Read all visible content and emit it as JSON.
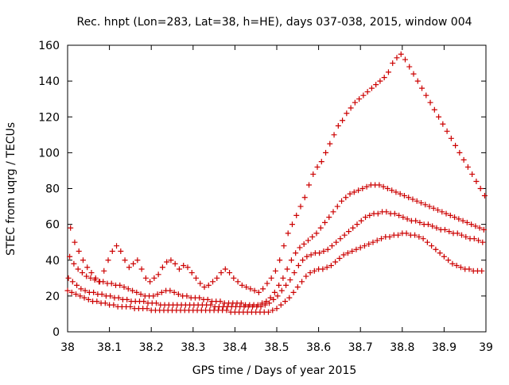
{
  "chart_data": {
    "type": "scatter",
    "title": "Rec. hnpt (Lon=283, Lat=38, h=HE), days 037-038, 2015, window 004",
    "xlabel": "GPS time / Days of year 2015",
    "ylabel": "STEC from uqrg / TECUs",
    "xlim": [
      38,
      39
    ],
    "ylim": [
      0,
      160
    ],
    "xticks": [
      "38",
      "38.1",
      "38.2",
      "38.3",
      "38.4",
      "38.5",
      "38.6",
      "38.7",
      "38.8",
      "38.9",
      "39"
    ],
    "yticks": [
      "0",
      "20",
      "40",
      "60",
      "80",
      "100",
      "120",
      "140",
      "160"
    ],
    "grid": false,
    "legend": "none",
    "marker": "+",
    "color": "#cc0000",
    "series": [
      {
        "x": [
          38.0,
          38.01,
          38.02,
          38.03,
          38.04,
          38.05,
          38.06,
          38.07,
          38.08,
          38.09,
          38.1,
          38.11,
          38.12,
          38.13,
          38.14,
          38.15,
          38.16,
          38.17,
          38.18,
          38.19,
          38.2,
          38.21,
          38.22,
          38.23,
          38.24,
          38.25,
          38.26,
          38.27,
          38.28,
          38.29,
          38.3,
          38.31,
          38.32,
          38.33,
          38.34,
          38.35,
          38.36,
          38.37,
          38.38,
          38.39,
          38.4,
          38.41,
          38.42,
          38.43,
          38.44,
          38.45,
          38.46,
          38.47,
          38.48,
          38.49,
          38.5,
          38.51,
          38.52,
          38.53,
          38.54,
          38.55,
          38.56,
          38.57,
          38.58,
          38.59,
          38.6,
          38.61,
          38.62,
          38.63,
          38.64,
          38.65,
          38.66,
          38.67,
          38.68,
          38.69,
          38.7,
          38.71,
          38.72,
          38.73,
          38.74,
          38.75,
          38.76,
          38.77,
          38.78,
          38.79,
          38.8,
          38.81,
          38.82,
          38.83,
          38.84,
          38.85,
          38.86,
          38.87,
          38.88,
          38.89,
          38.9,
          38.91,
          38.92,
          38.93,
          38.94,
          38.95,
          38.96,
          38.97,
          38.98,
          38.99
        ],
        "y": [
          23,
          22,
          21,
          20,
          19,
          18,
          17,
          17,
          16,
          16,
          15,
          15,
          14,
          14,
          14,
          14,
          13,
          13,
          13,
          13,
          12,
          12,
          12,
          12,
          12,
          12,
          12,
          12,
          12,
          12,
          12,
          12,
          12,
          12,
          12,
          12,
          12,
          12,
          12,
          11,
          11,
          11,
          11,
          11,
          11,
          11,
          11,
          11,
          11,
          12,
          13,
          15,
          17,
          19,
          22,
          25,
          28,
          31,
          33,
          34,
          35,
          35,
          36,
          37,
          39,
          41,
          43,
          44,
          45,
          46,
          47,
          48,
          49,
          50,
          51,
          52,
          53,
          53,
          54,
          54,
          55,
          55,
          54,
          54,
          53,
          52,
          50,
          48,
          46,
          44,
          42,
          40,
          38,
          37,
          36,
          35,
          35,
          34,
          34,
          34
        ]
      },
      {
        "x": [
          38.002,
          38.012,
          38.022,
          38.032,
          38.042,
          38.052,
          38.062,
          38.072,
          38.082,
          38.092,
          38.102,
          38.112,
          38.122,
          38.132,
          38.142,
          38.152,
          38.162,
          38.172,
          38.182,
          38.192,
          38.202,
          38.212,
          38.222,
          38.232,
          38.242,
          38.252,
          38.262,
          38.272,
          38.282,
          38.292,
          38.302,
          38.312,
          38.322,
          38.332,
          38.342,
          38.352,
          38.362,
          38.372,
          38.382,
          38.392,
          38.402,
          38.412,
          38.422,
          38.432,
          38.442,
          38.452,
          38.462,
          38.472,
          38.482,
          38.492,
          38.502,
          38.512,
          38.522,
          38.532,
          38.542,
          38.552,
          38.562,
          38.572,
          38.582,
          38.592,
          38.602,
          38.612,
          38.622,
          38.632,
          38.642,
          38.652,
          38.662,
          38.672,
          38.682,
          38.692,
          38.702,
          38.712,
          38.722,
          38.732,
          38.742,
          38.752,
          38.762,
          38.772,
          38.782,
          38.792,
          38.802,
          38.812,
          38.822,
          38.832,
          38.842,
          38.852,
          38.862,
          38.872,
          38.882,
          38.892,
          38.902,
          38.912,
          38.922,
          38.932,
          38.942,
          38.952,
          38.962,
          38.972,
          38.982,
          38.992
        ],
        "y": [
          30,
          28,
          26,
          24,
          23,
          22,
          22,
          21,
          21,
          20,
          20,
          19,
          19,
          18,
          18,
          17,
          17,
          17,
          17,
          16,
          16,
          16,
          15,
          15,
          15,
          15,
          15,
          15,
          15,
          15,
          15,
          15,
          15,
          15,
          15,
          14,
          14,
          14,
          14,
          14,
          14,
          14,
          14,
          14,
          14,
          14,
          14,
          15,
          16,
          18,
          20,
          23,
          26,
          29,
          33,
          37,
          40,
          42,
          43,
          44,
          44,
          45,
          46,
          48,
          50,
          52,
          54,
          56,
          58,
          60,
          62,
          64,
          65,
          66,
          66,
          67,
          67,
          66,
          66,
          65,
          64,
          63,
          62,
          62,
          61,
          60,
          60,
          59,
          58,
          57,
          57,
          56,
          55,
          55,
          54,
          53,
          52,
          52,
          51,
          50
        ]
      },
      {
        "x": [
          38.005,
          38.015,
          38.025,
          38.035,
          38.045,
          38.055,
          38.065,
          38.075,
          38.085,
          38.095,
          38.105,
          38.115,
          38.125,
          38.135,
          38.145,
          38.155,
          38.165,
          38.175,
          38.185,
          38.195,
          38.205,
          38.215,
          38.225,
          38.235,
          38.245,
          38.255,
          38.265,
          38.275,
          38.285,
          38.295,
          38.305,
          38.315,
          38.325,
          38.335,
          38.345,
          38.355,
          38.365,
          38.375,
          38.385,
          38.395,
          38.405,
          38.415,
          38.425,
          38.435,
          38.445,
          38.455,
          38.465,
          38.475,
          38.485,
          38.495,
          38.505,
          38.515,
          38.525,
          38.535,
          38.545,
          38.555,
          38.565,
          38.575,
          38.585,
          38.595,
          38.605,
          38.615,
          38.625,
          38.635,
          38.645,
          38.655,
          38.665,
          38.675,
          38.685,
          38.695,
          38.705,
          38.715,
          38.725,
          38.735,
          38.745,
          38.755,
          38.765,
          38.775,
          38.785,
          38.795,
          38.805,
          38.815,
          38.825,
          38.835,
          38.845,
          38.855,
          38.865,
          38.875,
          38.885,
          38.895,
          38.905,
          38.915,
          38.925,
          38.935,
          38.945,
          38.955,
          38.965,
          38.975,
          38.985,
          38.995
        ],
        "y": [
          42,
          38,
          35,
          33,
          31,
          30,
          29,
          28,
          28,
          27,
          27,
          26,
          26,
          25,
          24,
          23,
          22,
          21,
          20,
          20,
          20,
          21,
          22,
          23,
          23,
          22,
          21,
          20,
          20,
          19,
          19,
          19,
          18,
          18,
          17,
          17,
          17,
          16,
          16,
          16,
          16,
          16,
          15,
          15,
          15,
          15,
          16,
          17,
          19,
          22,
          26,
          30,
          35,
          40,
          44,
          47,
          49,
          51,
          53,
          55,
          58,
          61,
          64,
          67,
          70,
          73,
          75,
          77,
          78,
          79,
          80,
          81,
          82,
          82,
          82,
          81,
          80,
          79,
          78,
          77,
          76,
          75,
          74,
          73,
          72,
          71,
          70,
          69,
          68,
          67,
          66,
          65,
          64,
          63,
          62,
          61,
          60,
          59,
          58,
          57
        ]
      },
      {
        "x": [
          38.007,
          38.017,
          38.027,
          38.037,
          38.047,
          38.057,
          38.067,
          38.077,
          38.087,
          38.097,
          38.107,
          38.117,
          38.127,
          38.137,
          38.147,
          38.157,
          38.167,
          38.177,
          38.187,
          38.197,
          38.207,
          38.217,
          38.227,
          38.237,
          38.247,
          38.257,
          38.267,
          38.277,
          38.287,
          38.297,
          38.307,
          38.317,
          38.327,
          38.337,
          38.347,
          38.357,
          38.367,
          38.377,
          38.387,
          38.397,
          38.407,
          38.417,
          38.427,
          38.437,
          38.447,
          38.457,
          38.467,
          38.477,
          38.487,
          38.497,
          38.507,
          38.517,
          38.527,
          38.537,
          38.547,
          38.557,
          38.567,
          38.577,
          38.587,
          38.597,
          38.607,
          38.617,
          38.627,
          38.637,
          38.647,
          38.657,
          38.667,
          38.677,
          38.687,
          38.697,
          38.707,
          38.717,
          38.727,
          38.737,
          38.747,
          38.757,
          38.767,
          38.777,
          38.787,
          38.797,
          38.807,
          38.817,
          38.827,
          38.837,
          38.847,
          38.857,
          38.867,
          38.877,
          38.887,
          38.897,
          38.907,
          38.917,
          38.927,
          38.937,
          38.947,
          38.957,
          38.967,
          38.977,
          38.987,
          38.997
        ],
        "y": [
          58,
          50,
          45,
          40,
          36,
          33,
          30,
          28,
          34,
          40,
          45,
          48,
          45,
          40,
          36,
          38,
          40,
          35,
          30,
          28,
          30,
          32,
          36,
          39,
          40,
          38,
          35,
          37,
          36,
          33,
          30,
          27,
          25,
          26,
          28,
          30,
          33,
          35,
          33,
          30,
          28,
          26,
          25,
          24,
          23,
          22,
          24,
          27,
          30,
          34,
          40,
          48,
          55,
          60,
          65,
          70,
          75,
          82,
          88,
          92,
          95,
          100,
          105,
          110,
          115,
          118,
          122,
          125,
          128,
          130,
          132,
          134,
          136,
          138,
          140,
          142,
          145,
          150,
          153,
          155,
          152,
          148,
          144,
          140,
          136,
          132,
          128,
          124,
          120,
          116,
          112,
          108,
          104,
          100,
          96,
          92,
          88,
          84,
          80,
          76
        ]
      }
    ]
  }
}
